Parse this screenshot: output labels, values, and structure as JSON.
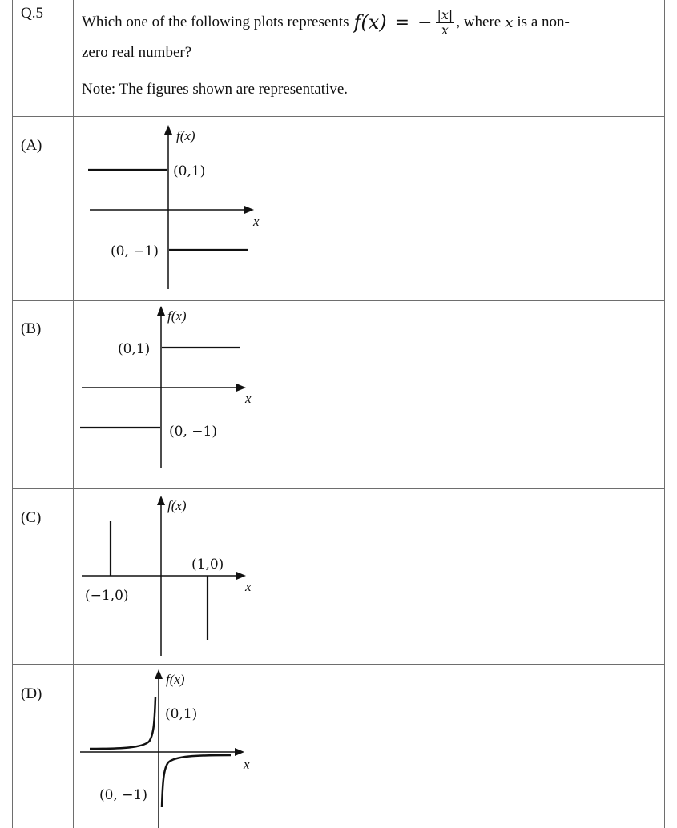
{
  "question": {
    "number": "Q.5",
    "line1_before": "Which one of the following plots represents",
    "formula_lhs": "f(x)",
    "formula_eq": "=",
    "formula_minus": "−",
    "formula_num": "|x|",
    "formula_den": "x",
    "line1_after_where": ", where",
    "line1_var": "x",
    "line1_after_var": "is a non-",
    "line2": "zero real number?",
    "note": "Note: The figures shown are representative."
  },
  "options": [
    {
      "label": "(A)",
      "y_axis_label": "f(x)",
      "x_axis_label": "x",
      "point_upper": "(0,1)",
      "point_lower": "(0, −1)"
    },
    {
      "label": "(B)",
      "y_axis_label": "f(x)",
      "x_axis_label": "x",
      "point_upper": "(0,1)",
      "point_lower": "(0, −1)"
    },
    {
      "label": "(C)",
      "y_axis_label": "f(x)",
      "x_axis_label": "x",
      "point_left": "(−1,0)",
      "point_right": "(1,0)"
    },
    {
      "label": "(D)",
      "y_axis_label": "f(x)",
      "x_axis_label": "x",
      "point_upper": "(0,1)",
      "point_lower": "(0, −1)"
    }
  ]
}
